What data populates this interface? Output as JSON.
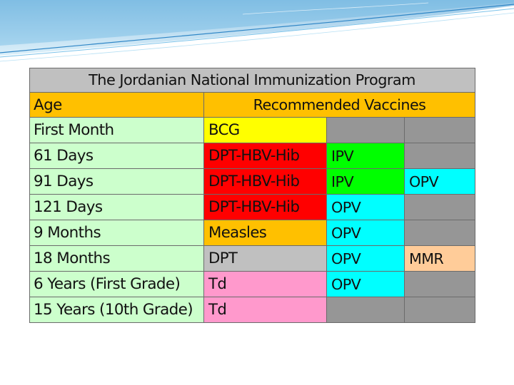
{
  "table": {
    "title": "The Jordanian National Immunization Program",
    "age_header": "Age",
    "vaccines_header": "Recommended Vaccines",
    "rows": [
      {
        "age": "First Month",
        "v1": "BCG",
        "v2": "",
        "v3": ""
      },
      {
        "age": "61 Days",
        "v1": "DPT-HBV-Hib",
        "v2": "IPV",
        "v3": ""
      },
      {
        "age": "91 Days",
        "v1": "DPT-HBV-Hib",
        "v2": "IPV",
        "v3": "OPV"
      },
      {
        "age": "121 Days",
        "v1": "DPT-HBV-Hib",
        "v2": "OPV",
        "v3": ""
      },
      {
        "age": "9 Months",
        "v1": "Measles",
        "v2": "OPV",
        "v3": ""
      },
      {
        "age": "18 Months",
        "v1": "DPT",
        "v2": "OPV",
        "v3": "MMR"
      },
      {
        "age": "6 Years (First Grade)",
        "v1": "Td",
        "v2": "OPV",
        "v3": ""
      },
      {
        "age": "15 Years (10th Grade)",
        "v1": "Td",
        "v2": "",
        "v3": ""
      }
    ]
  },
  "colors": {
    "title_bg": "#c0c0c0",
    "header_bg": "#ffc000",
    "age_bg": "#ccffcc",
    "empty": "#969696",
    "BCG": "#ffff00",
    "DPT-HBV-Hib": "#ff0000",
    "IPV": "#00ff00",
    "OPV": "#00ffff",
    "Measles": "#ffc000",
    "DPT": "#c0c0c0",
    "MMR": "#ffcc99",
    "Td": "#ff99cc",
    "header_wave_1": "#4fa3d8",
    "header_wave_2": "#9fd1ee"
  }
}
